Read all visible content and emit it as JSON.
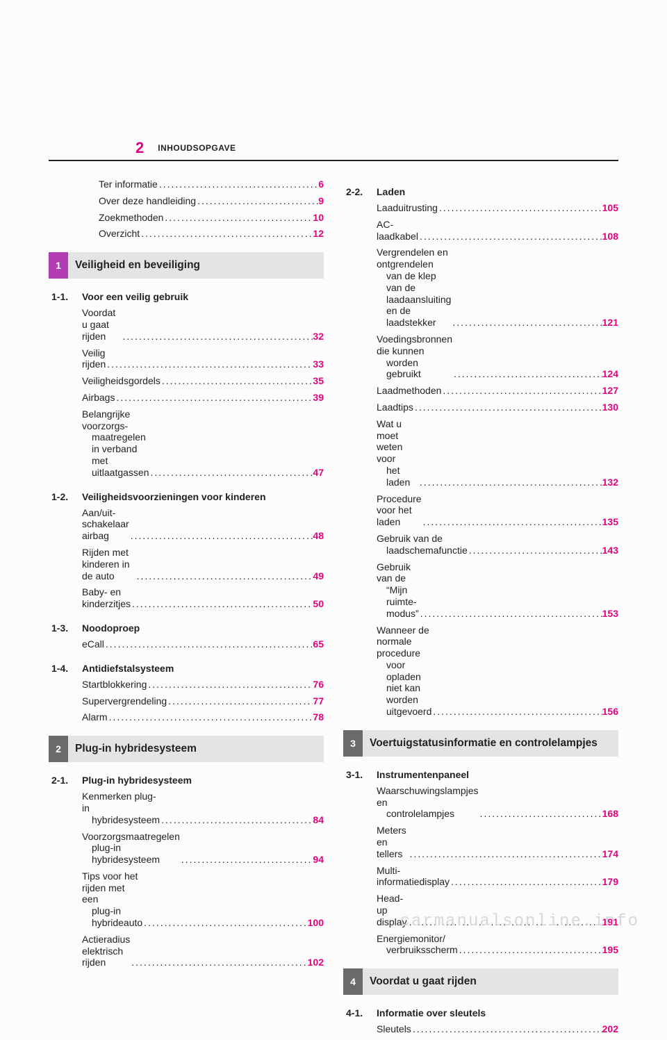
{
  "page_number": "2",
  "header_title": "INHOUDSOPGAVE",
  "colors": {
    "page_number_color": "#e4007f",
    "text_color": "#222222",
    "chapter_bar_bg": "#e4e4e4",
    "chapter1_num_bg": "#b23db3",
    "chapter_other_num_bg": "#6a6a6a",
    "divider_color": "#222222",
    "background": "#fcfcfc"
  },
  "front_matter": [
    {
      "label": "Ter informatie",
      "page": "6"
    },
    {
      "label": "Over deze handleiding",
      "page": "9"
    },
    {
      "label": "Zoekmethoden",
      "page": "10"
    },
    {
      "label": "Overzicht",
      "page": "12"
    }
  ],
  "chapters": [
    {
      "num": "1",
      "title": "Veiligheid en beveiliging",
      "num_bg": "#b23db3",
      "sections": [
        {
          "num": "1-1.",
          "label": "Voor een veilig gebruik",
          "items": [
            {
              "lines": [
                "Voordat u gaat rijden"
              ],
              "page": "32"
            },
            {
              "lines": [
                "Veilig rijden"
              ],
              "page": "33"
            },
            {
              "lines": [
                "Veiligheidsgordels"
              ],
              "page": "35"
            },
            {
              "lines": [
                "Airbags"
              ],
              "page": "39"
            },
            {
              "lines": [
                "Belangrijke voorzorgs-",
                "maatregelen in verband",
                "met uitlaatgassen"
              ],
              "page": "47"
            }
          ]
        },
        {
          "num": "1-2.",
          "label": "Veiligheidsvoorzieningen voor kinderen",
          "items": [
            {
              "lines": [
                "Aan/uit-schakelaar airbag"
              ],
              "page": "48"
            },
            {
              "lines": [
                "Rijden met kinderen in de auto"
              ],
              "page": "49"
            },
            {
              "lines": [
                "Baby- en kinderzitjes"
              ],
              "page": "50"
            }
          ]
        },
        {
          "num": "1-3.",
          "label": "Noodoproep",
          "items": [
            {
              "lines": [
                "eCall"
              ],
              "page": "65"
            }
          ]
        },
        {
          "num": "1-4.",
          "label": "Antidiefstalsysteem",
          "items": [
            {
              "lines": [
                "Startblokkering"
              ],
              "page": "76"
            },
            {
              "lines": [
                "Supervergrendeling"
              ],
              "page": "77"
            },
            {
              "lines": [
                "Alarm"
              ],
              "page": "78"
            }
          ]
        }
      ]
    },
    {
      "num": "2",
      "title": "Plug-in hybridesysteem",
      "num_bg": "#6a6a6a",
      "sections": [
        {
          "num": "2-1.",
          "label": "Plug-in hybridesysteem",
          "items": [
            {
              "lines": [
                "Kenmerken plug-in",
                "hybridesysteem"
              ],
              "page": "84"
            },
            {
              "lines": [
                "Voorzorgsmaatregelen",
                "plug-in hybridesysteem"
              ],
              "page": "94"
            },
            {
              "lines": [
                "Tips voor het rijden met een",
                "plug-in hybrideauto"
              ],
              "page": "100"
            },
            {
              "lines": [
                "Actieradius elektrisch rijden"
              ],
              "page": "102"
            }
          ]
        },
        {
          "num": "2-2.",
          "label": "Laden",
          "items": [
            {
              "lines": [
                "Laaduitrusting"
              ],
              "page": "105"
            },
            {
              "lines": [
                "AC-laadkabel"
              ],
              "page": "108"
            },
            {
              "lines": [
                "Vergrendelen en ontgrendelen",
                "van de klep van de",
                "laadaansluiting en de",
                "laadstekker"
              ],
              "page": "121"
            },
            {
              "lines": [
                "Voedingsbronnen die kunnen",
                "worden gebruikt"
              ],
              "page": "124"
            },
            {
              "lines": [
                "Laadmethoden"
              ],
              "page": "127"
            },
            {
              "lines": [
                "Laadtips"
              ],
              "page": "130"
            },
            {
              "lines": [
                "Wat u moet weten voor",
                "het laden"
              ],
              "page": "132"
            },
            {
              "lines": [
                "Procedure voor het laden"
              ],
              "page": "135"
            },
            {
              "lines": [
                "Gebruik van de",
                "laadschemafunctie"
              ],
              "page": "143"
            },
            {
              "lines": [
                "Gebruik van de",
                "“Mijn ruimte-modus”"
              ],
              "page": "153"
            },
            {
              "lines": [
                "Wanneer de normale procedure",
                "voor opladen niet kan",
                "worden uitgevoerd"
              ],
              "page": "156"
            }
          ]
        }
      ]
    },
    {
      "num": "3",
      "title": "Voertuigstatusinformatie en controlelampjes",
      "num_bg": "#6a6a6a",
      "sections": [
        {
          "num": "3-1.",
          "label": "Instrumentenpaneel",
          "items": [
            {
              "lines": [
                "Waarschuwingslampjes en",
                "controlelampjes"
              ],
              "page": "168"
            },
            {
              "lines": [
                "Meters en tellers"
              ],
              "page": "174"
            },
            {
              "lines": [
                "Multi-informatiedisplay"
              ],
              "page": "179"
            },
            {
              "lines": [
                "Head-up display"
              ],
              "page": "191"
            },
            {
              "lines": [
                "Energiemonitor/",
                "verbruiksscherm"
              ],
              "page": "195"
            }
          ]
        }
      ]
    },
    {
      "num": "4",
      "title": "Voordat u gaat rijden",
      "num_bg": "#6a6a6a",
      "sections": [
        {
          "num": "4-1.",
          "label": "Informatie over sleutels",
          "items": [
            {
              "lines": [
                "Sleutels"
              ],
              "page": "202"
            }
          ]
        }
      ]
    }
  ],
  "watermark": "carmanualsonline.info"
}
